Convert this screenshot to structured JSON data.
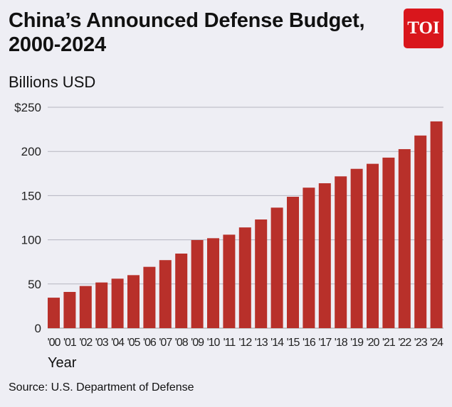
{
  "chart_data": {
    "type": "bar",
    "title": "China’s Announced Defense Budget, 2000-2024",
    "ylabel": "Billions USD",
    "xlabel": "Year",
    "source": "Source: U.S. Department of Defense",
    "categories": [
      "'00",
      "'01",
      "'02",
      "'03",
      "'04",
      "'05",
      "'06",
      "'07",
      "'08",
      "'09",
      "'10",
      "'11",
      "'12",
      "'13",
      "'14",
      "'15",
      "'16",
      "'17",
      "'18",
      "'19",
      "'20",
      "'21",
      "'22",
      "'23",
      "'24"
    ],
    "values": [
      34.5,
      41,
      47.7,
      51.7,
      56,
      60,
      69.4,
      77,
      84.4,
      99.7,
      101.8,
      105.8,
      114,
      123,
      136.4,
      148.7,
      159,
      164,
      171.8,
      180.3,
      186,
      193,
      202.6,
      218,
      234
    ],
    "ylim": [
      0,
      250
    ],
    "yticks": [
      0,
      50,
      100,
      150,
      200,
      250
    ],
    "ytick_labels": [
      "0",
      "50",
      "100",
      "150",
      "200",
      "$250"
    ],
    "grid": true,
    "bar_color": "#b8302a"
  },
  "logo": "TOI",
  "logo_color": "#d9161c"
}
